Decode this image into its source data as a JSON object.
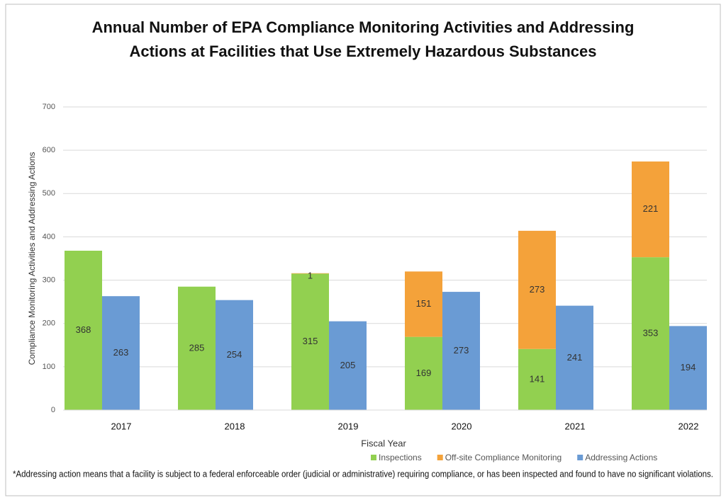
{
  "chart_data": {
    "type": "bar",
    "title": "Annual Number of EPA Compliance Monitoring Activities and Addressing Actions at Facilities that Use Extremely Hazardous Substances",
    "x_label": "Fiscal Year",
    "y_label": "Compliance Monitoring Activities and Addressing Actions",
    "footnote": "*Addressing action means that a facility is subject to a federal enforceable order (judicial or administrative) requiring compliance, or has been inspected and found to have no significant violations.",
    "categories": [
      "2017",
      "2018",
      "2019",
      "2020",
      "2021",
      "2022"
    ],
    "series": [
      {
        "name": "Inspections",
        "color": "#92d050",
        "stack": "a",
        "values": [
          368,
          285,
          315,
          169,
          141,
          353
        ]
      },
      {
        "name": "Off-site Compliance Monitoring",
        "color": "#f4a23a",
        "stack": "a",
        "values": [
          null,
          null,
          1,
          151,
          273,
          221
        ]
      },
      {
        "name": "Addressing Actions",
        "color": "#6a9bd4",
        "stack": "b",
        "values": [
          263,
          254,
          205,
          273,
          241,
          194
        ]
      }
    ],
    "ylim": [
      0,
      700
    ],
    "yticks": [
      0,
      100,
      200,
      300,
      400,
      500,
      600,
      700
    ],
    "grid": true,
    "legend": "bottom-right"
  }
}
